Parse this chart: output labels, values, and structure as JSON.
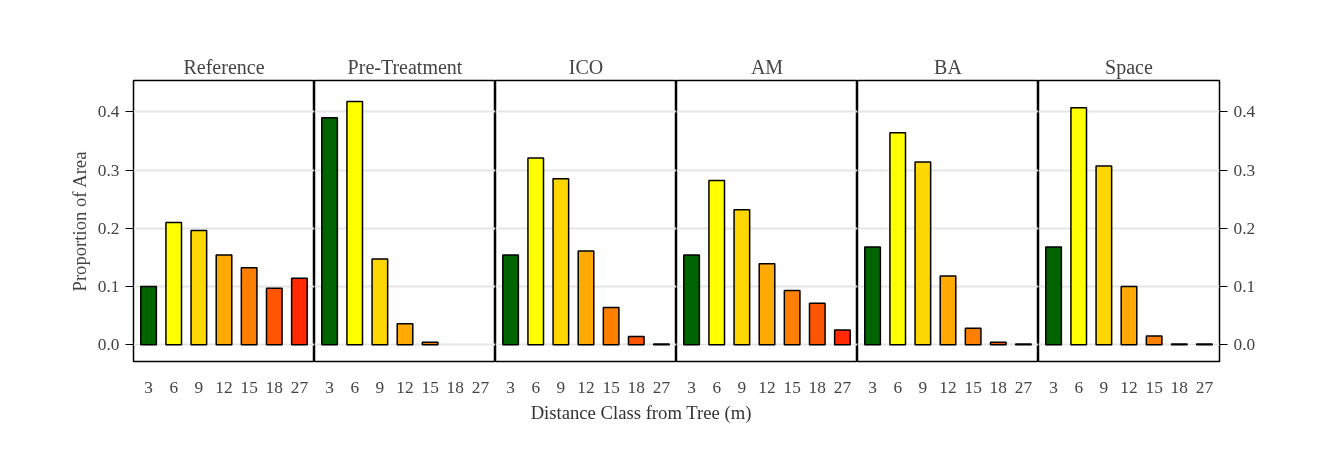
{
  "chart_data": [
    {
      "type": "bar",
      "title": "Reference",
      "ylabel": "Proportion of Area",
      "categories": [
        "3",
        "6",
        "9",
        "12",
        "15",
        "18",
        "27"
      ],
      "values": [
        0.1,
        0.21,
        0.196,
        0.154,
        0.132,
        0.097,
        0.114
      ],
      "colors": [
        "#006400",
        "#ffff00",
        "#ffd700",
        "#ffaa00",
        "#ff8000",
        "#ff5500",
        "#ff2a00"
      ],
      "ylim": [
        -0.029,
        0.454
      ],
      "yticks": [
        {
          "value": 0,
          "label": "0.0"
        },
        0.1,
        0.2,
        0.3,
        0.4
      ],
      "grid": "y"
    },
    {
      "type": "bar",
      "title": "Pre-Treatment",
      "categories": [
        "3",
        "6",
        "9",
        "12",
        "15",
        "18",
        "27"
      ],
      "values": [
        0.39,
        0.418,
        0.147,
        0.036,
        0.004,
        null,
        null
      ],
      "colors": [
        "#006400",
        "#ffff00",
        "#ffd700",
        "#ffaa00",
        "#ff8000",
        "#ff5500",
        "#ff2a00"
      ],
      "ylim": [
        -0.029,
        0.454
      ],
      "yticks": [
        0.0,
        0.1,
        0.2,
        0.3,
        0.4
      ],
      "grid": "y",
      "tick_labels": "x"
    },
    {
      "type": "bar",
      "title": "ICO",
      "xlabel": "Distance Class from Tree (m)",
      "categories": [
        "3",
        "6",
        "9",
        "12",
        "15",
        "18",
        "27"
      ],
      "values": [
        0.154,
        0.321,
        0.285,
        0.161,
        0.064,
        0.014,
        0.001
      ],
      "colors": [
        "#006400",
        "#ffff00",
        "#ffd700",
        "#ffaa00",
        "#ff8000",
        "#ff5500",
        "#ff2a00"
      ],
      "ylim": [
        -0.029,
        0.454
      ],
      "yticks": [
        0.0,
        0.1,
        0.2,
        0.3,
        0.4
      ],
      "grid": "y",
      "tick_labels": "x"
    },
    {
      "type": "bar",
      "title": "AM",
      "categories": [
        "3",
        "6",
        "9",
        "12",
        "15",
        "18",
        "27"
      ],
      "values": [
        0.154,
        0.282,
        0.232,
        0.139,
        0.093,
        0.071,
        0.025
      ],
      "colors": [
        "#006400",
        "#ffff00",
        "#ffd700",
        "#ffaa00",
        "#ff8000",
        "#ff5500",
        "#ff2a00"
      ],
      "ylim": [
        -0.029,
        0.454
      ],
      "yticks": [
        0.0,
        0.1,
        0.2,
        0.3,
        0.4
      ],
      "grid": "y",
      "tick_labels": "x"
    },
    {
      "type": "bar",
      "title": "BA",
      "categories": [
        "3",
        "6",
        "9",
        "12",
        "15",
        "18",
        "27"
      ],
      "values": [
        0.168,
        0.364,
        0.314,
        0.118,
        0.028,
        0.004,
        0.001
      ],
      "colors": [
        "#006400",
        "#ffff00",
        "#ffd700",
        "#ffaa00",
        "#ff8000",
        "#ff5500",
        "#ff2a00"
      ],
      "ylim": [
        -0.029,
        0.454
      ],
      "yticks": [
        0.0,
        0.1,
        0.2,
        0.3,
        0.4
      ],
      "grid": "y",
      "tick_labels": "x"
    },
    {
      "type": "bar",
      "title": "Space",
      "categories": [
        "3",
        "6",
        "9",
        "12",
        "15",
        "18",
        "27"
      ],
      "values": [
        0.168,
        0.407,
        0.307,
        0.1,
        0.015,
        0.001,
        0.001
      ],
      "colors": [
        "#006400",
        "#ffff00",
        "#ffd700",
        "#ffaa00",
        "#ff8000",
        "#ff5500",
        "#ff2a00"
      ],
      "ylim": [
        -0.029,
        0.454
      ],
      "yticks": [
        {
          "value": 0,
          "label": "0.0"
        },
        0.1,
        0.2,
        0.3,
        0.4
      ],
      "grid": "y"
    }
  ]
}
